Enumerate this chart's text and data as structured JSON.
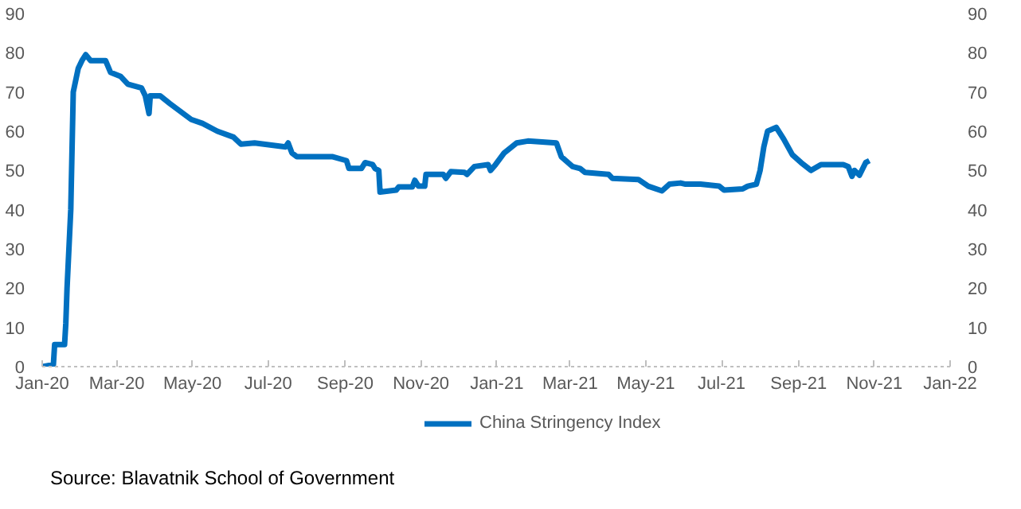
{
  "chart_data": {
    "type": "line",
    "x": [
      "2020-01-01",
      "2020-01-10",
      "2020-01-11",
      "2020-01-19",
      "2020-01-20",
      "2020-01-21",
      "2020-01-24",
      "2020-01-26",
      "2020-01-30",
      "2020-02-02",
      "2020-02-05",
      "2020-02-09",
      "2020-02-21",
      "2020-02-25",
      "2020-03-04",
      "2020-03-10",
      "2020-03-21",
      "2020-03-24",
      "2020-03-27",
      "2020-03-28",
      "2020-04-05",
      "2020-04-13",
      "2020-04-30",
      "2020-05-09",
      "2020-05-21",
      "2020-06-03",
      "2020-06-09",
      "2020-06-20",
      "2020-07-15",
      "2020-07-17",
      "2020-07-20",
      "2020-07-24",
      "2020-08-22",
      "2020-09-02",
      "2020-09-04",
      "2020-09-14",
      "2020-09-17",
      "2020-09-23",
      "2020-09-25",
      "2020-09-28",
      "2020-09-29",
      "2020-10-12",
      "2020-10-14",
      "2020-10-25",
      "2020-10-27",
      "2020-10-30",
      "2020-11-04",
      "2020-11-05",
      "2020-11-19",
      "2020-11-21",
      "2020-11-25",
      "2020-12-06",
      "2020-12-08",
      "2020-12-14",
      "2020-12-25",
      "2020-12-27",
      "2020-12-31",
      "2021-01-07",
      "2021-01-13",
      "2021-01-17",
      "2021-01-26",
      "2021-02-18",
      "2021-02-22",
      "2021-03-03",
      "2021-03-09",
      "2021-03-13",
      "2021-04-01",
      "2021-04-04",
      "2021-04-25",
      "2021-05-03",
      "2021-05-14",
      "2021-05-20",
      "2021-05-29",
      "2021-06-02",
      "2021-06-14",
      "2021-06-29",
      "2021-07-03",
      "2021-07-18",
      "2021-07-22",
      "2021-07-29",
      "2021-08-01",
      "2021-08-04",
      "2021-08-07",
      "2021-08-14",
      "2021-08-20",
      "2021-08-27",
      "2021-09-03",
      "2021-09-11",
      "2021-09-19",
      "2021-10-07",
      "2021-10-11",
      "2021-10-14",
      "2021-10-16",
      "2021-10-20",
      "2021-10-25",
      "2021-10-28"
    ],
    "series": [
      {
        "name": "China Stringency Index",
        "color": "#0070c0",
        "values": [
          0,
          0.5,
          5.6,
          5.6,
          11,
          20,
          40,
          70,
          76,
          78,
          79.5,
          78,
          78,
          75,
          74,
          72,
          71,
          69,
          64.5,
          69,
          69,
          67,
          63,
          62,
          60,
          58.5,
          56.7,
          57,
          56,
          57,
          54.5,
          53.5,
          53.5,
          52.5,
          50.5,
          50.5,
          52,
          51.5,
          50.5,
          50,
          44.5,
          45,
          45.8,
          45.8,
          47.5,
          46,
          46,
          49,
          49,
          48,
          49.7,
          49.5,
          49,
          51,
          51.5,
          50,
          51.5,
          54.5,
          56,
          57,
          57.5,
          57,
          53.5,
          51,
          50.5,
          49.5,
          49,
          48,
          47.7,
          46,
          44.8,
          46.5,
          46.8,
          46.5,
          46.5,
          46,
          45,
          45.3,
          46,
          46.5,
          50,
          56,
          60,
          61,
          58,
          54,
          52,
          50,
          51.5,
          51.5,
          51,
          48.5,
          50,
          48.8,
          52,
          52.5
        ]
      }
    ],
    "xlim": [
      "2020-01-01",
      "2022-01-01"
    ],
    "xticks": [
      {
        "value": "2020-01-01",
        "label": "Jan-20"
      },
      {
        "value": "2020-03-01",
        "label": "Mar-20"
      },
      {
        "value": "2020-05-01",
        "label": "May-20"
      },
      {
        "value": "2020-07-01",
        "label": "Jul-20"
      },
      {
        "value": "2020-09-01",
        "label": "Sep-20"
      },
      {
        "value": "2020-11-01",
        "label": "Nov-20"
      },
      {
        "value": "2021-01-01",
        "label": "Jan-21"
      },
      {
        "value": "2021-03-01",
        "label": "Mar-21"
      },
      {
        "value": "2021-05-01",
        "label": "May-21"
      },
      {
        "value": "2021-07-01",
        "label": "Jul-21"
      },
      {
        "value": "2021-09-01",
        "label": "Sep-21"
      },
      {
        "value": "2021-11-01",
        "label": "Nov-21"
      },
      {
        "value": "2022-01-01",
        "label": "Jan-22"
      }
    ],
    "ylim": [
      0,
      90
    ],
    "yticks": [
      0,
      10,
      20,
      30,
      40,
      50,
      60,
      70,
      80,
      90
    ],
    "y2lim": [
      0,
      90
    ],
    "y2ticks": [
      0,
      10,
      20,
      30,
      40,
      50,
      60,
      70,
      80,
      90
    ],
    "legend": "bottom",
    "grid": false,
    "line_style": "solid",
    "marker": "none",
    "annotations": [
      "Source:  Blavatnik School of Government"
    ]
  }
}
